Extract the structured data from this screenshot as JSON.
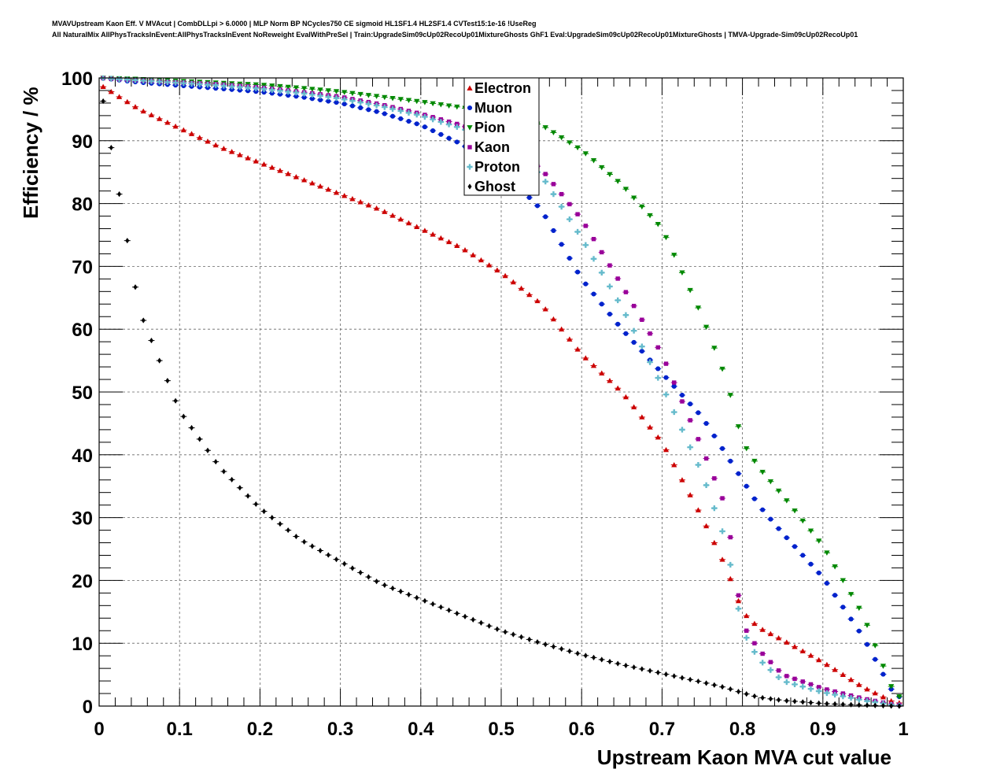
{
  "header": {
    "line1": "MVAVUpstream Kaon Eff. V MVAcut | CombDLLpi > 6.0000 | MLP Norm BP NCycles750 CE sigmoid HL1SF1.4 HL2SF1.4 CVTest15:1e-16 !UseReg",
    "line2": "All NaturalMix AllPhysTracksInEvent:AllPhysTracksInEvent NoReweight EvalWithPreSel | Train:UpgradeSim09cUp02RecoUp01MixtureGhosts GhF1 Eval:UpgradeSim09cUp02RecoUp01MixtureGhosts | TMVA-Upgrade-Sim09cUp02RecoUp01"
  },
  "chart_data": {
    "type": "scatter",
    "title": "",
    "xlabel": "Upstream Kaon MVA cut value",
    "ylabel": "Efficiency / %",
    "xlim": [
      0,
      1
    ],
    "ylim": [
      0,
      100
    ],
    "x_ticks": [
      "0",
      "0.1",
      "0.2",
      "0.3",
      "0.4",
      "0.5",
      "0.6",
      "0.7",
      "0.8",
      "0.9",
      "1"
    ],
    "y_ticks": [
      "0",
      "10",
      "20",
      "30",
      "40",
      "50",
      "60",
      "70",
      "80",
      "90",
      "100"
    ],
    "grid": true,
    "legend_position": "top-center",
    "x": [
      0.0,
      0.05,
      0.1,
      0.15,
      0.2,
      0.25,
      0.3,
      0.35,
      0.4,
      0.45,
      0.5,
      0.55,
      0.6,
      0.65,
      0.7,
      0.75,
      0.78,
      0.8,
      0.82,
      0.85,
      0.9,
      0.95,
      0.99
    ],
    "series": [
      {
        "name": "Electron",
        "color": "#cc0000",
        "marker": "triangle-up",
        "values": [
          99.0,
          95.0,
          92.0,
          89.0,
          86.5,
          84.0,
          81.5,
          79.0,
          76.0,
          73.0,
          69.0,
          64.0,
          56.0,
          50.0,
          42.0,
          30.0,
          22.0,
          15.0,
          12.5,
          10.5,
          7.0,
          3.0,
          0.5
        ]
      },
      {
        "name": "Muon",
        "color": "#0022cc",
        "marker": "circle",
        "values": [
          100.0,
          99.3,
          98.8,
          98.3,
          97.8,
          97.0,
          96.0,
          94.5,
          92.5,
          89.5,
          85.5,
          79.0,
          68.0,
          60.0,
          53.0,
          46.0,
          40.0,
          36.0,
          32.0,
          27.5,
          20.5,
          11.0,
          1.5
        ]
      },
      {
        "name": "Pion",
        "color": "#008800",
        "marker": "triangle-down",
        "values": [
          100.0,
          99.8,
          99.5,
          99.2,
          98.9,
          98.4,
          97.8,
          97.0,
          96.2,
          95.3,
          94.2,
          92.5,
          88.5,
          83.0,
          76.0,
          62.0,
          52.0,
          42.0,
          38.0,
          33.5,
          25.5,
          14.5,
          1.5
        ]
      },
      {
        "name": "Kaon",
        "color": "#990099",
        "marker": "square",
        "values": [
          100.0,
          99.6,
          99.3,
          99.0,
          98.5,
          97.8,
          97.0,
          95.8,
          94.3,
          92.5,
          90.0,
          85.5,
          77.5,
          67.0,
          56.0,
          41.0,
          31.5,
          13.0,
          9.0,
          5.0,
          2.8,
          1.2,
          0.2
        ]
      },
      {
        "name": "Proton",
        "color": "#66bbcc",
        "marker": "cross",
        "values": [
          100.0,
          99.6,
          99.2,
          98.8,
          98.3,
          97.6,
          96.7,
          95.5,
          94.0,
          92.0,
          89.5,
          84.5,
          74.5,
          63.5,
          51.0,
          37.0,
          26.0,
          12.0,
          7.5,
          4.0,
          2.2,
          0.9,
          0.1
        ]
      },
      {
        "name": "Ghost",
        "color": "#000000",
        "marker": "diamond",
        "values": [
          100.0,
          63.0,
          47.0,
          38.0,
          31.5,
          26.5,
          23.0,
          19.5,
          17.0,
          14.5,
          12.0,
          10.0,
          8.2,
          6.6,
          5.2,
          3.8,
          2.9,
          2.1,
          1.4,
          0.9,
          0.4,
          0.15,
          0.0
        ]
      }
    ]
  }
}
